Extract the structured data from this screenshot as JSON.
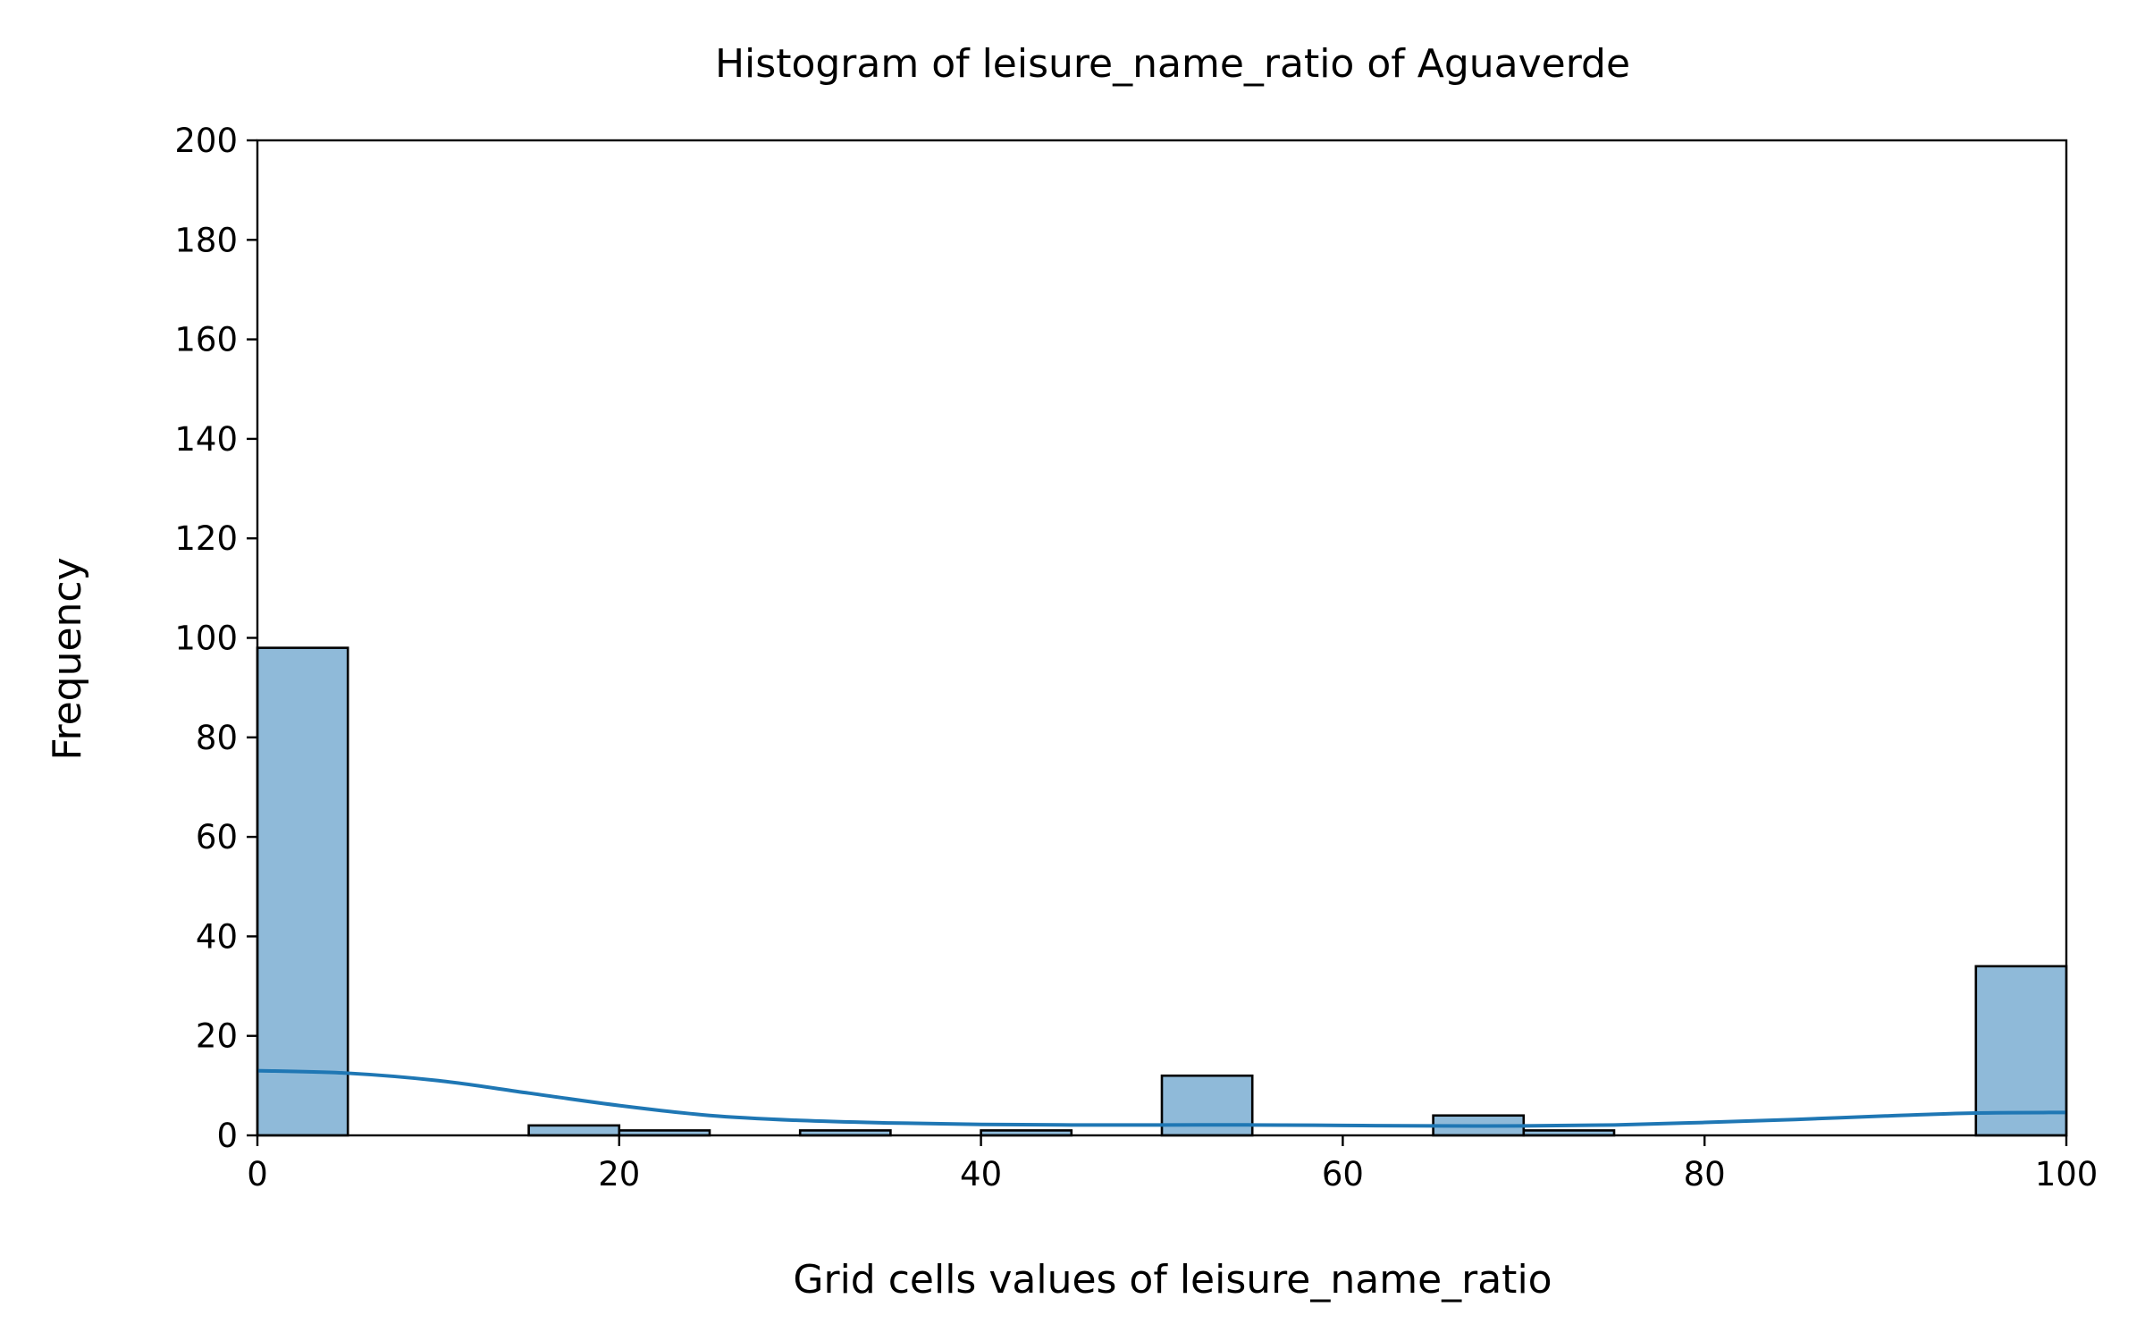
{
  "chart_data": {
    "type": "bar",
    "title": "Histogram of leisure_name_ratio of Aguaverde",
    "xlabel": "Grid cells values of leisure_name_ratio",
    "ylabel": "Frequency",
    "xlim": [
      0,
      100
    ],
    "ylim": [
      0,
      200
    ],
    "xticks": [
      "0",
      "20",
      "40",
      "60",
      "80",
      "100"
    ],
    "yticks": [
      "0",
      "20",
      "40",
      "60",
      "80",
      "100",
      "120",
      "140",
      "160",
      "180",
      "200"
    ],
    "bin_width": 5,
    "bins": [
      {
        "x0": 0,
        "x1": 5,
        "count": 98
      },
      {
        "x0": 5,
        "x1": 10,
        "count": 0
      },
      {
        "x0": 10,
        "x1": 15,
        "count": 0
      },
      {
        "x0": 15,
        "x1": 20,
        "count": 2
      },
      {
        "x0": 20,
        "x1": 25,
        "count": 1
      },
      {
        "x0": 25,
        "x1": 30,
        "count": 0
      },
      {
        "x0": 30,
        "x1": 35,
        "count": 1
      },
      {
        "x0": 35,
        "x1": 40,
        "count": 0
      },
      {
        "x0": 40,
        "x1": 45,
        "count": 1
      },
      {
        "x0": 45,
        "x1": 50,
        "count": 0
      },
      {
        "x0": 50,
        "x1": 55,
        "count": 12
      },
      {
        "x0": 55,
        "x1": 60,
        "count": 0
      },
      {
        "x0": 60,
        "x1": 65,
        "count": 0
      },
      {
        "x0": 65,
        "x1": 70,
        "count": 4
      },
      {
        "x0": 70,
        "x1": 75,
        "count": 1
      },
      {
        "x0": 75,
        "x1": 80,
        "count": 0
      },
      {
        "x0": 80,
        "x1": 85,
        "count": 0
      },
      {
        "x0": 85,
        "x1": 90,
        "count": 0
      },
      {
        "x0": 90,
        "x1": 95,
        "count": 0
      },
      {
        "x0": 95,
        "x1": 100,
        "count": 34
      }
    ],
    "kde": {
      "x": [
        0,
        5,
        10,
        15,
        20,
        25,
        30,
        35,
        40,
        45,
        50,
        55,
        60,
        65,
        70,
        75,
        80,
        85,
        90,
        95,
        100
      ],
      "y": [
        13,
        12.5,
        11,
        8.5,
        6,
        4,
        3,
        2.5,
        2.2,
        2.1,
        2.1,
        2.1,
        2,
        1.9,
        1.9,
        2.1,
        2.6,
        3.2,
        3.9,
        4.5,
        4.6
      ]
    },
    "grid": false,
    "legend": "none",
    "colors": {
      "bar_fill": "#8fbad9",
      "kde_line": "#1f77b4"
    }
  }
}
